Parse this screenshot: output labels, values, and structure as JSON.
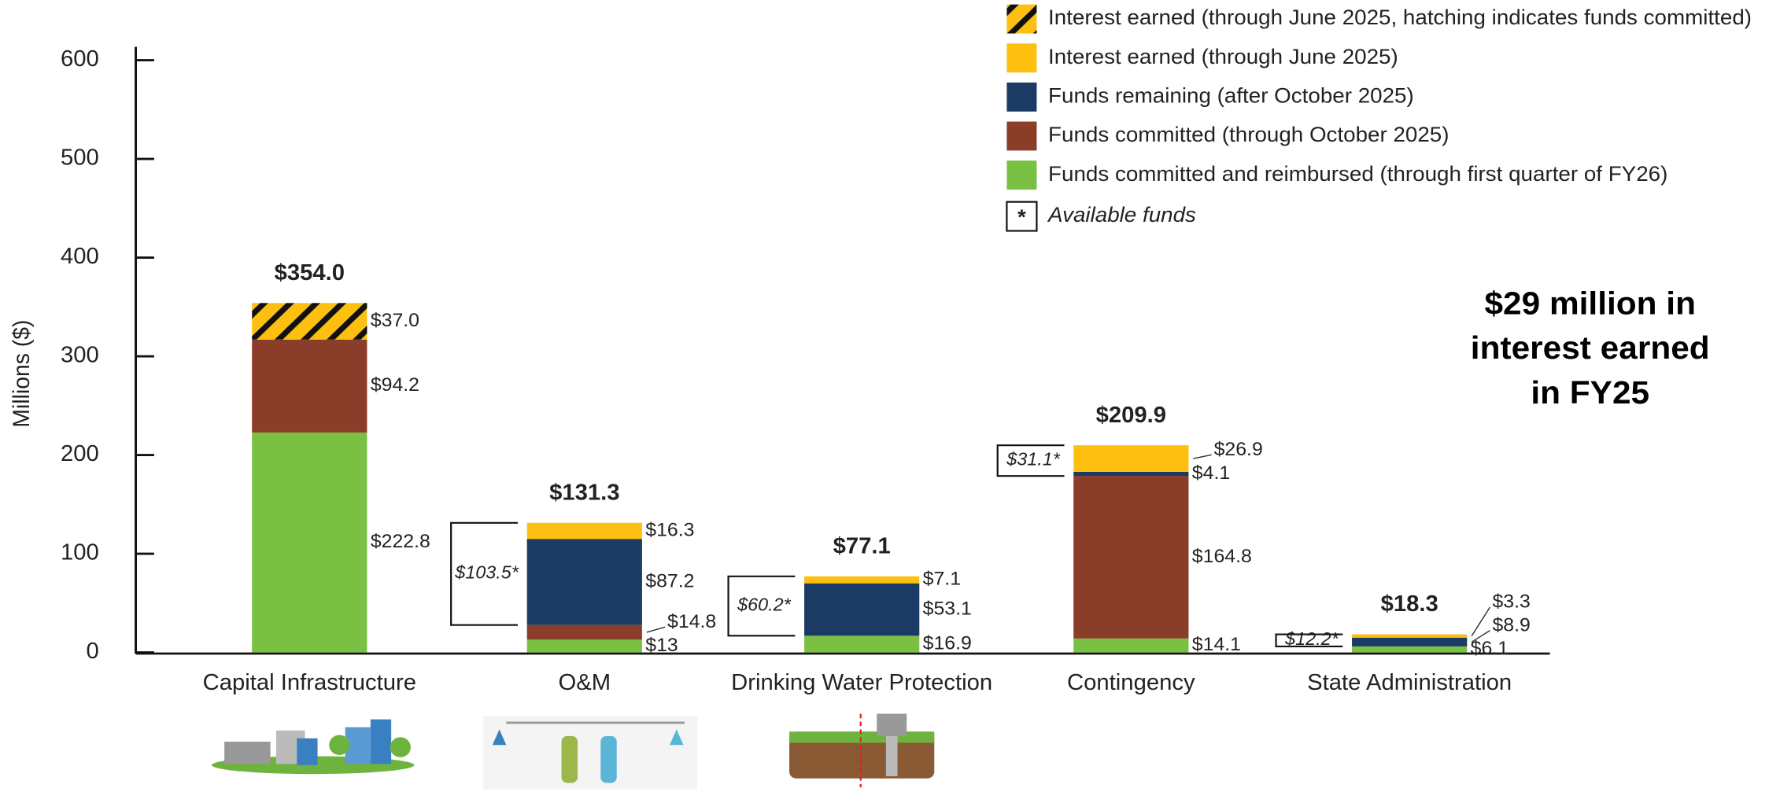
{
  "chart_data": {
    "type": "stacked_bar",
    "y_label": "Millions ($)",
    "categories": [
      "Capital Infrastructure",
      "O&M",
      "Drinking Water Protection",
      "Contingency",
      "State Administration"
    ],
    "ylim": [
      0,
      600
    ],
    "yticks": [
      0,
      100,
      200,
      300,
      400,
      500,
      600
    ],
    "grid": false,
    "series": [
      {
        "name": "Funds committed and reimbursed (through first quarter of FY26)",
        "color": "#7ac143",
        "values": [
          222.8,
          13,
          16.9,
          14.1,
          6.1
        ],
        "value_labels": [
          "$222.8",
          "$13",
          "$16.9",
          "$14.1",
          "$6.1"
        ]
      },
      {
        "name": "Funds committed (through October 2025)",
        "color": "#8a3d28",
        "values": [
          94.2,
          14.8,
          null,
          164.8,
          null
        ],
        "value_labels": [
          "$94.2",
          "$14.8",
          null,
          "$164.8",
          null
        ]
      },
      {
        "name": "Funds remaining (after October 2025)",
        "color": "#1b3a64",
        "values": [
          null,
          87.2,
          53.1,
          4.1,
          8.9
        ],
        "value_labels": [
          null,
          "$87.2",
          "$53.1",
          "$4.1",
          "$8.9"
        ]
      },
      {
        "name": "Interest earned (through June 2025)",
        "color": "#fdc010",
        "values": [
          null,
          16.3,
          7.1,
          26.9,
          3.3
        ],
        "value_labels": [
          null,
          "$16.3",
          "$7.1",
          "$26.9",
          "$3.3"
        ]
      },
      {
        "name": "Interest earned (through June 2025, hatching indicates funds committed)",
        "color": "#fdc010",
        "hatch": true,
        "values": [
          37.0,
          null,
          null,
          null,
          null
        ],
        "value_labels": [
          "$37.0",
          null,
          null,
          null,
          null
        ]
      }
    ],
    "totals": [
      354.0,
      131.3,
      77.1,
      209.9,
      18.3
    ],
    "total_labels": [
      "$354.0",
      "$131.3",
      "$77.1",
      "$209.9",
      "$18.3"
    ],
    "available": [
      null,
      103.5,
      60.2,
      31.1,
      12.2
    ],
    "available_labels": [
      null,
      "$103.5*",
      "$60.2*",
      "$31.1*",
      "$12.2*"
    ],
    "available_symbol": "*",
    "available_legend": "Available funds",
    "annotation": [
      "$29 million in",
      "interest earned",
      "in FY25"
    ]
  }
}
